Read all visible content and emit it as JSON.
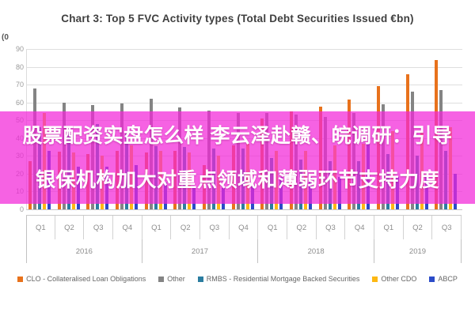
{
  "title": "Chart 3: Top 5 FVC Activity types (Total Debt Securities Issued €bn)",
  "corner_mark": "(0",
  "overlay": {
    "line1": "股票配资实盘怎么样 李云泽赴赣、皖调研：引导",
    "line2": "银保机构加大对重点领域和薄弱环节支持力度",
    "bg_color": "rgba(243,37,216,0.72)",
    "text_color": "#FFFFFF"
  },
  "chart_data": {
    "type": "bar",
    "title": "Chart 3: Top 5 FVC Activity types (Total Debt Securities Issued €bn)",
    "xlabel": "",
    "ylabel": "",
    "ylim": [
      0,
      90
    ],
    "yticks": [
      0,
      10,
      20,
      30,
      40,
      50,
      60,
      70,
      80,
      90
    ],
    "grid": true,
    "legend_position": "bottom",
    "years": [
      {
        "label": "2016",
        "quarters": [
          "Q1",
          "Q2",
          "Q3",
          "Q4"
        ]
      },
      {
        "label": "2017",
        "quarters": [
          "Q1",
          "Q2",
          "Q3",
          "Q4"
        ]
      },
      {
        "label": "2018",
        "quarters": [
          "Q1",
          "Q2",
          "Q3",
          "Q4"
        ]
      },
      {
        "label": "2019",
        "quarters": [
          "Q1",
          "Q2",
          "Q3"
        ]
      }
    ],
    "categories": [
      "2016 Q1",
      "2016 Q2",
      "2016 Q3",
      "2016 Q4",
      "2017 Q1",
      "2017 Q2",
      "2017 Q3",
      "2017 Q4",
      "2018 Q1",
      "2018 Q2",
      "2018 Q3",
      "2018 Q4",
      "2019 Q1",
      "2019 Q2",
      "2019 Q3"
    ],
    "series": [
      {
        "name": "CLO - Collateralised Loan Obligations",
        "color": "#E8721C",
        "values": [
          27,
          32.5,
          31,
          33,
          32,
          33,
          25,
          36,
          51,
          55,
          57.5,
          61.5,
          69,
          76,
          84
        ]
      },
      {
        "name": "Other",
        "color": "#848484",
        "values": [
          68,
          60,
          58.5,
          59.5,
          62,
          57,
          55.5,
          54,
          54,
          53,
          52,
          54,
          59,
          66,
          67
        ]
      },
      {
        "name": "RMBS - Residential Mortgage Backed Securities",
        "color": "#2B7DA0",
        "values": [
          46,
          46.5,
          48,
          44,
          35.5,
          35,
          34,
          34,
          29,
          28,
          27,
          27,
          31,
          30,
          33
        ]
      },
      {
        "name": "Other CDO",
        "color": "#FDB813",
        "values": [
          54,
          32,
          30,
          36,
          33,
          32,
          30,
          37,
          33,
          33,
          36,
          37,
          44,
          43,
          46
        ]
      },
      {
        "name": "ABCP",
        "color": "#2B4BC8",
        "values": [
          33,
          24,
          24,
          25,
          15,
          13,
          12,
          13,
          18,
          18,
          18,
          37,
          18,
          19,
          20
        ]
      }
    ]
  }
}
